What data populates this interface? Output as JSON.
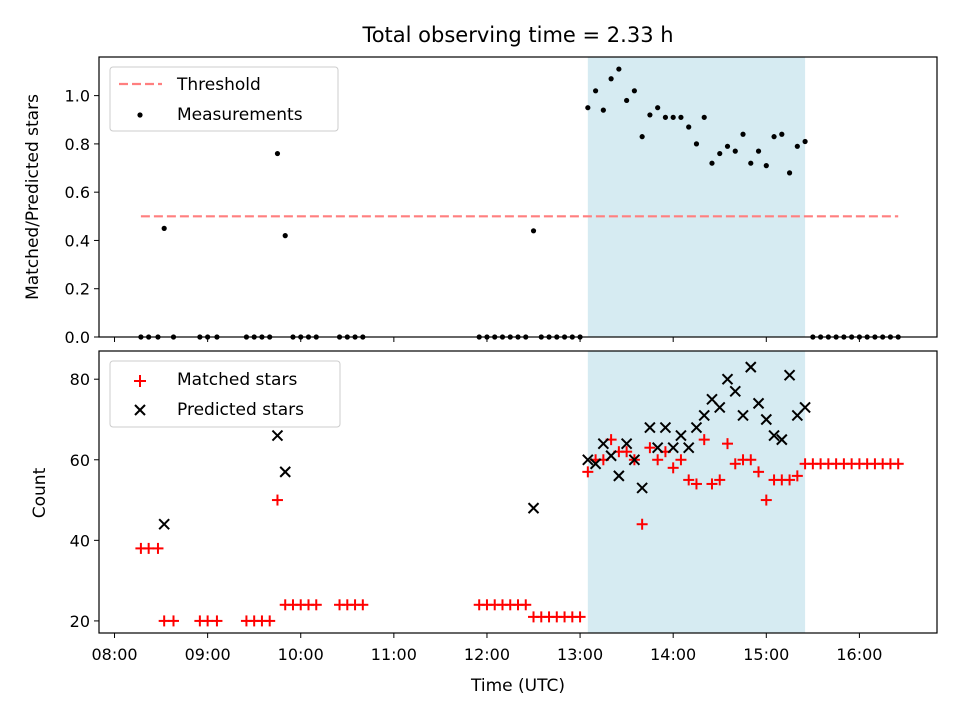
{
  "chart_data": [
    {
      "type": "scatter",
      "title": "Total observing time = 2.33 h",
      "xlabel": "",
      "ylabel": "Matched/Predicted stars",
      "ylim": [
        0,
        1.16
      ],
      "yticks": [
        "0.0",
        "0.2",
        "0.4",
        "0.6",
        "0.8",
        "1.0"
      ],
      "ytick_values": [
        0,
        0.2,
        0.4,
        0.6,
        0.8,
        1.0
      ],
      "legend_position": "top-left",
      "shaded_interval": [
        "13:05",
        "15:25"
      ],
      "shade_color": "#add8e6",
      "threshold": {
        "name": "Threshold",
        "value": 0.5,
        "x_range": [
          "08:17",
          "16:25"
        ],
        "color": "#ff7f7f"
      },
      "series": [
        {
          "name": "Measurements",
          "color": "#000000",
          "marker": "dot",
          "points": [
            [
              "08:17",
              0
            ],
            [
              "08:22",
              0
            ],
            [
              "08:28",
              0
            ],
            [
              "08:32",
              0.45
            ],
            [
              "08:38",
              0
            ],
            [
              "08:55",
              0
            ],
            [
              "09:00",
              0
            ],
            [
              "09:06",
              0
            ],
            [
              "09:25",
              0
            ],
            [
              "09:30",
              0
            ],
            [
              "09:35",
              0
            ],
            [
              "09:40",
              0
            ],
            [
              "09:45",
              0.76
            ],
            [
              "09:50",
              0.42
            ],
            [
              "09:55",
              0
            ],
            [
              "10:00",
              0
            ],
            [
              "10:05",
              0
            ],
            [
              "10:10",
              0
            ],
            [
              "10:25",
              0
            ],
            [
              "10:30",
              0
            ],
            [
              "10:35",
              0
            ],
            [
              "10:40",
              0
            ],
            [
              "11:55",
              0
            ],
            [
              "12:00",
              0
            ],
            [
              "12:05",
              0
            ],
            [
              "12:10",
              0
            ],
            [
              "12:15",
              0
            ],
            [
              "12:20",
              0
            ],
            [
              "12:25",
              0
            ],
            [
              "12:30",
              0.44
            ],
            [
              "12:35",
              0
            ],
            [
              "12:40",
              0
            ],
            [
              "12:45",
              0
            ],
            [
              "12:50",
              0
            ],
            [
              "12:55",
              0
            ],
            [
              "13:00",
              0
            ],
            [
              "13:05",
              0.95
            ],
            [
              "13:10",
              1.02
            ],
            [
              "13:15",
              0.94
            ],
            [
              "13:20",
              1.07
            ],
            [
              "13:25",
              1.11
            ],
            [
              "13:30",
              0.98
            ],
            [
              "13:35",
              1.02
            ],
            [
              "13:40",
              0.83
            ],
            [
              "13:45",
              0.92
            ],
            [
              "13:50",
              0.95
            ],
            [
              "13:55",
              0.91
            ],
            [
              "14:00",
              0.91
            ],
            [
              "14:05",
              0.91
            ],
            [
              "14:10",
              0.87
            ],
            [
              "14:15",
              0.8
            ],
            [
              "14:20",
              0.91
            ],
            [
              "14:25",
              0.72
            ],
            [
              "14:30",
              0.76
            ],
            [
              "14:35",
              0.79
            ],
            [
              "14:40",
              0.77
            ],
            [
              "14:45",
              0.84
            ],
            [
              "14:50",
              0.72
            ],
            [
              "14:55",
              0.77
            ],
            [
              "15:00",
              0.71
            ],
            [
              "15:05",
              0.83
            ],
            [
              "15:10",
              0.84
            ],
            [
              "15:15",
              0.68
            ],
            [
              "15:20",
              0.79
            ],
            [
              "15:25",
              0.81
            ],
            [
              "15:30",
              0
            ],
            [
              "15:35",
              0
            ],
            [
              "15:40",
              0
            ],
            [
              "15:45",
              0
            ],
            [
              "15:50",
              0
            ],
            [
              "15:55",
              0
            ],
            [
              "16:00",
              0
            ],
            [
              "16:05",
              0
            ],
            [
              "16:10",
              0
            ],
            [
              "16:15",
              0
            ],
            [
              "16:20",
              0
            ],
            [
              "16:25",
              0
            ]
          ]
        }
      ]
    },
    {
      "type": "scatter",
      "title": "",
      "xlabel": "Time (UTC)",
      "ylabel": "Count",
      "ylim": [
        17,
        87
      ],
      "yticks": [
        "20",
        "40",
        "60",
        "80"
      ],
      "ytick_values": [
        20,
        40,
        60,
        80
      ],
      "xlim": [
        "07:50",
        "16:50"
      ],
      "xticks": [
        "08:00",
        "09:00",
        "10:00",
        "11:00",
        "12:00",
        "13:00",
        "14:00",
        "15:00",
        "16:00"
      ],
      "legend_position": "top-left",
      "shaded_interval": [
        "13:05",
        "15:25"
      ],
      "shade_color": "#add8e6",
      "series": [
        {
          "name": "Matched stars",
          "color": "#ff0000",
          "marker": "plus",
          "points": [
            [
              "08:17",
              38
            ],
            [
              "08:22",
              38
            ],
            [
              "08:28",
              38
            ],
            [
              "08:32",
              20
            ],
            [
              "08:38",
              20
            ],
            [
              "08:55",
              20
            ],
            [
              "09:00",
              20
            ],
            [
              "09:06",
              20
            ],
            [
              "09:25",
              20
            ],
            [
              "09:30",
              20
            ],
            [
              "09:35",
              20
            ],
            [
              "09:40",
              20
            ],
            [
              "09:45",
              50
            ],
            [
              "09:50",
              24
            ],
            [
              "09:55",
              24
            ],
            [
              "10:00",
              24
            ],
            [
              "10:05",
              24
            ],
            [
              "10:10",
              24
            ],
            [
              "10:25",
              24
            ],
            [
              "10:30",
              24
            ],
            [
              "10:35",
              24
            ],
            [
              "10:40",
              24
            ],
            [
              "11:55",
              24
            ],
            [
              "12:00",
              24
            ],
            [
              "12:05",
              24
            ],
            [
              "12:10",
              24
            ],
            [
              "12:15",
              24
            ],
            [
              "12:20",
              24
            ],
            [
              "12:25",
              24
            ],
            [
              "12:30",
              21
            ],
            [
              "12:35",
              21
            ],
            [
              "12:40",
              21
            ],
            [
              "12:45",
              21
            ],
            [
              "12:50",
              21
            ],
            [
              "12:55",
              21
            ],
            [
              "13:00",
              21
            ],
            [
              "13:05",
              57
            ],
            [
              "13:10",
              60
            ],
            [
              "13:15",
              60
            ],
            [
              "13:20",
              65
            ],
            [
              "13:25",
              62
            ],
            [
              "13:30",
              62
            ],
            [
              "13:35",
              60
            ],
            [
              "13:40",
              44
            ],
            [
              "13:45",
              63
            ],
            [
              "13:50",
              60
            ],
            [
              "13:55",
              62
            ],
            [
              "14:00",
              58
            ],
            [
              "14:05",
              60
            ],
            [
              "14:10",
              55
            ],
            [
              "14:15",
              54
            ],
            [
              "14:20",
              65
            ],
            [
              "14:25",
              54
            ],
            [
              "14:30",
              55
            ],
            [
              "14:35",
              64
            ],
            [
              "14:40",
              59
            ],
            [
              "14:45",
              60
            ],
            [
              "14:50",
              60
            ],
            [
              "14:55",
              57
            ],
            [
              "15:00",
              50
            ],
            [
              "15:05",
              55
            ],
            [
              "15:10",
              55
            ],
            [
              "15:15",
              55
            ],
            [
              "15:20",
              56
            ],
            [
              "15:25",
              59
            ],
            [
              "15:30",
              59
            ],
            [
              "15:35",
              59
            ],
            [
              "15:40",
              59
            ],
            [
              "15:45",
              59
            ],
            [
              "15:50",
              59
            ],
            [
              "15:55",
              59
            ],
            [
              "16:00",
              59
            ],
            [
              "16:05",
              59
            ],
            [
              "16:10",
              59
            ],
            [
              "16:15",
              59
            ],
            [
              "16:20",
              59
            ],
            [
              "16:25",
              59
            ]
          ]
        },
        {
          "name": "Predicted stars",
          "color": "#000000",
          "marker": "x",
          "points": [
            [
              "08:32",
              44
            ],
            [
              "09:45",
              66
            ],
            [
              "09:50",
              57
            ],
            [
              "12:30",
              48
            ],
            [
              "13:05",
              60
            ],
            [
              "13:10",
              59
            ],
            [
              "13:15",
              64
            ],
            [
              "13:20",
              61
            ],
            [
              "13:25",
              56
            ],
            [
              "13:30",
              64
            ],
            [
              "13:35",
              60
            ],
            [
              "13:40",
              53
            ],
            [
              "13:45",
              68
            ],
            [
              "13:50",
              63
            ],
            [
              "13:55",
              68
            ],
            [
              "14:00",
              63
            ],
            [
              "14:05",
              66
            ],
            [
              "14:10",
              63
            ],
            [
              "14:15",
              68
            ],
            [
              "14:20",
              71
            ],
            [
              "14:25",
              75
            ],
            [
              "14:30",
              73
            ],
            [
              "14:35",
              80
            ],
            [
              "14:40",
              77
            ],
            [
              "14:45",
              71
            ],
            [
              "14:50",
              83
            ],
            [
              "14:55",
              74
            ],
            [
              "15:00",
              70
            ],
            [
              "15:05",
              66
            ],
            [
              "15:10",
              65
            ],
            [
              "15:15",
              81
            ],
            [
              "15:20",
              71
            ],
            [
              "15:25",
              73
            ]
          ]
        }
      ]
    }
  ]
}
